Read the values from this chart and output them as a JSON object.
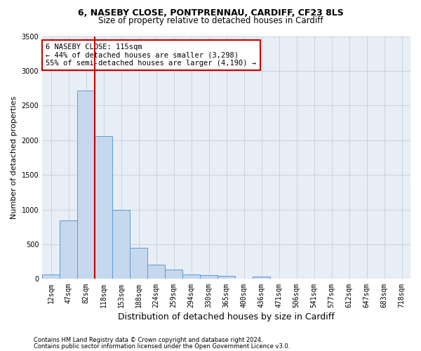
{
  "title1": "6, NASEBY CLOSE, PONTPRENNAU, CARDIFF, CF23 8LS",
  "title2": "Size of property relative to detached houses in Cardiff",
  "xlabel": "Distribution of detached houses by size in Cardiff",
  "ylabel": "Number of detached properties",
  "categories": [
    "12sqm",
    "47sqm",
    "82sqm",
    "118sqm",
    "153sqm",
    "188sqm",
    "224sqm",
    "259sqm",
    "294sqm",
    "330sqm",
    "365sqm",
    "400sqm",
    "436sqm",
    "471sqm",
    "506sqm",
    "541sqm",
    "577sqm",
    "612sqm",
    "647sqm",
    "683sqm",
    "718sqm"
  ],
  "values": [
    70,
    840,
    2720,
    2060,
    1000,
    450,
    205,
    135,
    70,
    55,
    40,
    0,
    35,
    0,
    0,
    0,
    0,
    0,
    0,
    0,
    0
  ],
  "bar_color": "#c5d8ed",
  "bar_edge_color": "#5b9bd5",
  "vline_color": "#cc0000",
  "annotation_line1": "6 NASEBY CLOSE: 115sqm",
  "annotation_line2": "← 44% of detached houses are smaller (3,298)",
  "annotation_line3": "55% of semi-detached houses are larger (4,190) →",
  "annotation_box_color": "white",
  "annotation_box_edge": "#cc0000",
  "ylim": [
    0,
    3500
  ],
  "yticks": [
    0,
    500,
    1000,
    1500,
    2000,
    2500,
    3000,
    3500
  ],
  "footer1": "Contains HM Land Registry data © Crown copyright and database right 2024.",
  "footer2": "Contains public sector information licensed under the Open Government Licence v3.0.",
  "bg_color": "#ffffff",
  "plot_bg_color": "#e8eef5",
  "grid_color": "#c0c8d8",
  "title1_fontsize": 9,
  "title2_fontsize": 8.5,
  "ylabel_fontsize": 8,
  "xlabel_fontsize": 9,
  "tick_fontsize": 7,
  "footer_fontsize": 6,
  "annotation_fontsize": 7.5
}
